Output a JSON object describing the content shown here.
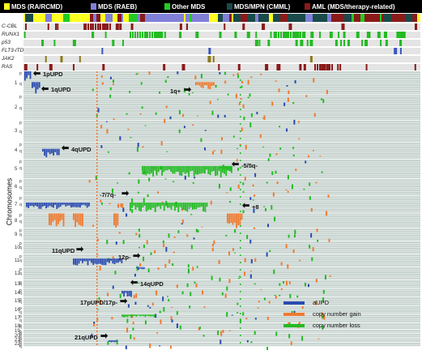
{
  "top_legend": {
    "items": [
      {
        "label": "MDS (RA/RCMD)",
        "color": "#ffff22"
      },
      {
        "label": "MDS (RAEB)",
        "color": "#8080d8"
      },
      {
        "label": "Other MDS",
        "color": "#22cc22"
      },
      {
        "label": "MDS/MPN (CMML)",
        "color": "#1a4a4a"
      },
      {
        "label": "AML (MDS/therapy-related)",
        "color": "#8a1a1a"
      }
    ]
  },
  "mutation_tracks": [
    "C-CBL",
    "RUNX1",
    "p53",
    "FLT3-ITD",
    "JAK2",
    "RAS"
  ],
  "y_axis_title": "Chromosomes",
  "chromosomes": [
    "1",
    "2",
    "3",
    "4",
    "5",
    "6",
    "7",
    "8",
    "9",
    "10",
    "11",
    "12",
    "13",
    "14",
    "15",
    "16",
    "17",
    "18",
    "19",
    "20",
    "21",
    "22"
  ],
  "arm_labels": {
    "p": "p",
    "q": "q"
  },
  "annotations": [
    {
      "id": "1pupd",
      "text": "1pUPD"
    },
    {
      "id": "1qupd",
      "text": "1qUPD"
    },
    {
      "id": "1qgain",
      "text": "1q+"
    },
    {
      "id": "4qupd",
      "text": "4qUPD"
    },
    {
      "id": "del5",
      "text": "-5/5q-"
    },
    {
      "id": "del7",
      "text": "-7/7q-"
    },
    {
      "id": "plus8",
      "text": "+8"
    },
    {
      "id": "11qupd",
      "text": "11qUPD"
    },
    {
      "id": "12p",
      "text": "12p-"
    },
    {
      "id": "14qupd",
      "text": "14qUPD"
    },
    {
      "id": "17p",
      "text": "17pUPD/17p-"
    },
    {
      "id": "21qupd",
      "text": "21qUPD"
    }
  ],
  "lesion_legend": [
    {
      "label": "aUPD",
      "color": "#2a4ab0"
    },
    {
      "label": "copy number gain",
      "color": "#f07a30"
    },
    {
      "label": "copy number loss",
      "color": "#22bb22"
    }
  ],
  "colors": {
    "background": "#c8d4d0",
    "row_line": "#ffffff",
    "upd": "#2a4ab0",
    "gain": "#f07a30",
    "loss": "#22bb22"
  }
}
